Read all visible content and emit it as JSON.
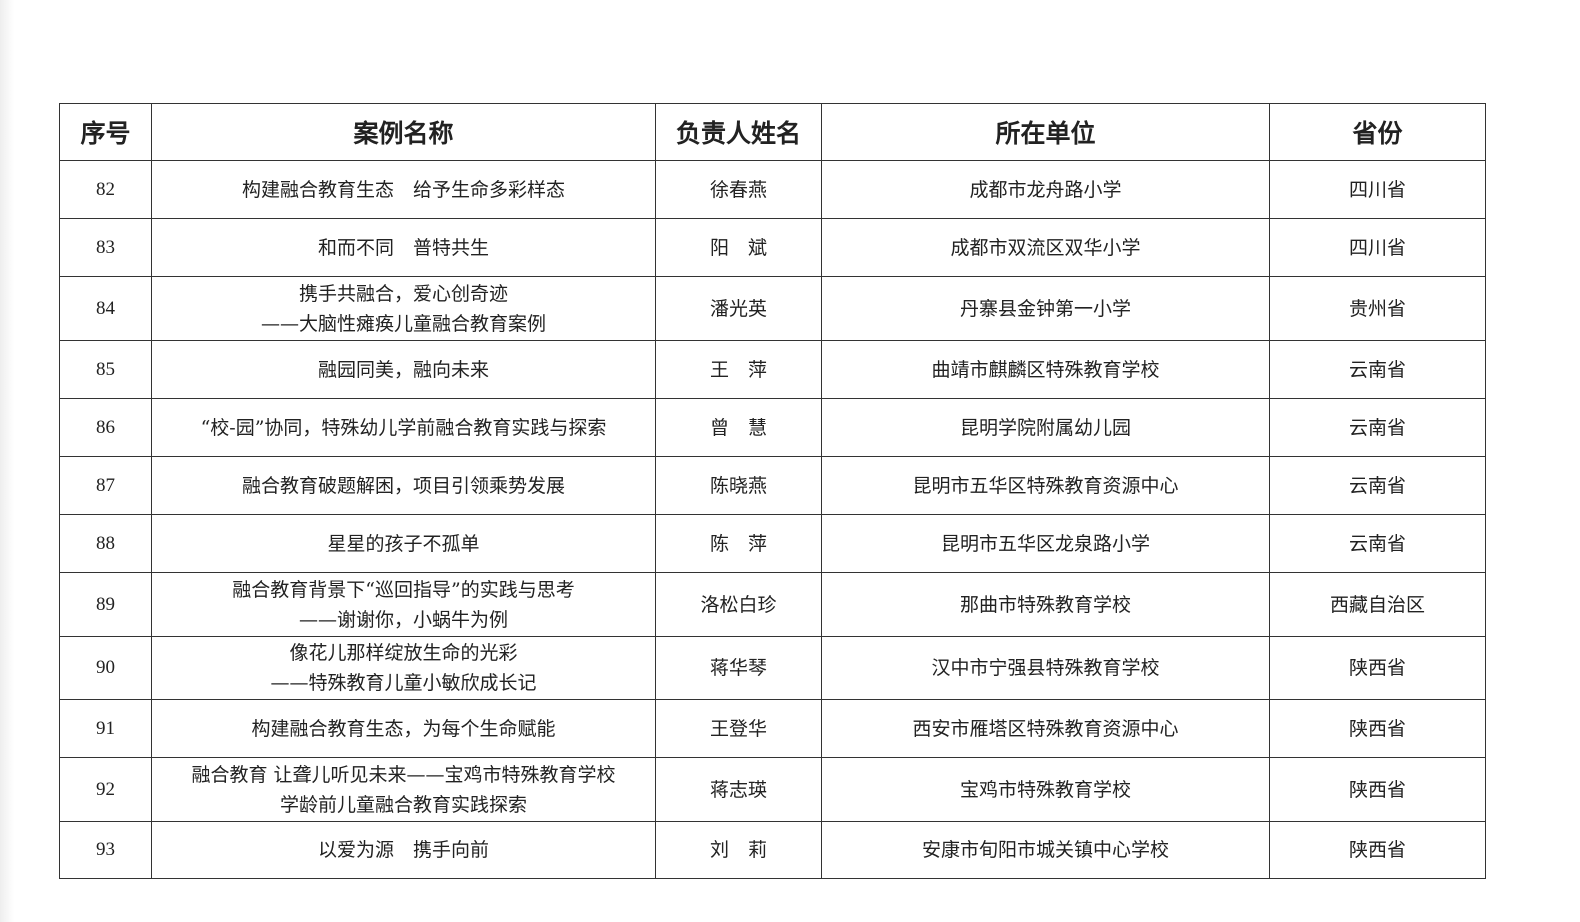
{
  "headers": [
    "序号",
    "案例名称",
    "负责人姓名",
    "所在单位",
    "省份"
  ],
  "rows": [
    {
      "no": "82",
      "title": [
        "构建融合教育生态　给予生命多彩样态"
      ],
      "person": "徐春燕",
      "unit": "成都市龙舟路小学",
      "province": "四川省"
    },
    {
      "no": "83",
      "title": [
        "和而不同　普特共生"
      ],
      "person": "阳　斌",
      "unit": "成都市双流区双华小学",
      "province": "四川省"
    },
    {
      "no": "84",
      "title": [
        "携手共融合，爱心创奇迹",
        "——大脑性瘫痪儿童融合教育案例"
      ],
      "person": "潘光英",
      "unit": "丹寨县金钟第一小学",
      "province": "贵州省"
    },
    {
      "no": "85",
      "title": [
        "融园同美，融向未来"
      ],
      "person": "王　萍",
      "unit": "曲靖市麒麟区特殊教育学校",
      "province": "云南省"
    },
    {
      "no": "86",
      "title": [
        "“校-园”协同，特殊幼儿学前融合教育实践与探索"
      ],
      "person": "曾　慧",
      "unit": "昆明学院附属幼儿园",
      "province": "云南省"
    },
    {
      "no": "87",
      "title": [
        "融合教育破题解困，项目引领乘势发展"
      ],
      "person": "陈晓燕",
      "unit": "昆明市五华区特殊教育资源中心",
      "province": "云南省"
    },
    {
      "no": "88",
      "title": [
        "星星的孩子不孤单"
      ],
      "person": "陈　萍",
      "unit": "昆明市五华区龙泉路小学",
      "province": "云南省"
    },
    {
      "no": "89",
      "title": [
        "融合教育背景下“巡回指导”的实践与思考",
        "——谢谢你，小蜗牛为例"
      ],
      "person": "洛松白珍",
      "unit": "那曲市特殊教育学校",
      "province": "西藏自治区"
    },
    {
      "no": "90",
      "title": [
        "像花儿那样绽放生命的光彩",
        "——特殊教育儿童小敏欣成长记"
      ],
      "person": "蒋华琴",
      "unit": "汉中市宁强县特殊教育学校",
      "province": "陕西省"
    },
    {
      "no": "91",
      "title": [
        "构建融合教育生态，为每个生命赋能"
      ],
      "person": "王登华",
      "unit": "西安市雁塔区特殊教育资源中心",
      "province": "陕西省"
    },
    {
      "no": "92",
      "title": [
        "融合教育  让聋儿听见未来——宝鸡市特殊教育学校",
        "学龄前儿童融合教育实践探索"
      ],
      "person": "蒋志瑛",
      "unit": "宝鸡市特殊教育学校",
      "province": "陕西省"
    },
    {
      "no": "93",
      "title": [
        "以爱为源　携手向前"
      ],
      "person": "刘　莉",
      "unit": "安康市旬阳市城关镇中心学校",
      "province": "陕西省"
    }
  ]
}
